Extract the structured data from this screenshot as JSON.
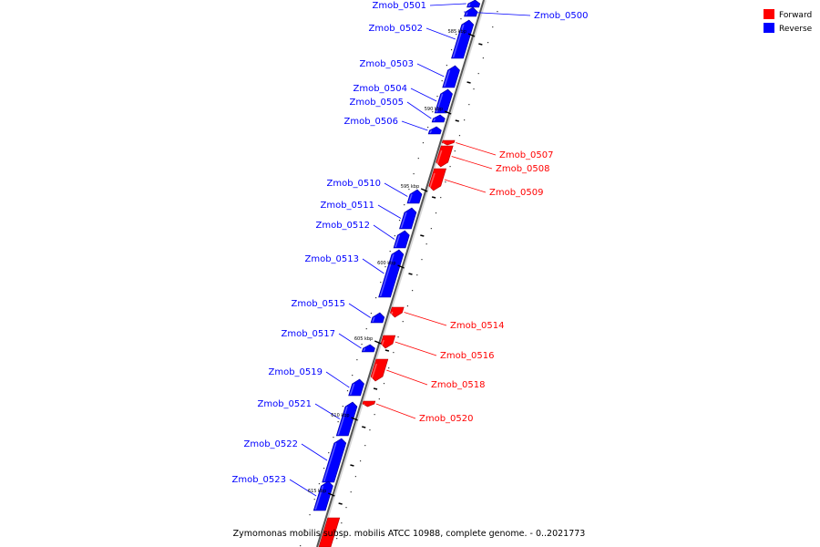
{
  "caption": "Zymomonas mobilis subsp. mobilis ATCC 10988, complete genome. - 0..2021773",
  "legend": [
    {
      "label": "Forward",
      "color": "#ff0000"
    },
    {
      "label": "Reverse",
      "color": "#0000ff"
    }
  ],
  "scale_labels": [
    "585 kbp",
    "590 kbp",
    "595 kbp",
    "600 kbp",
    "605 kbp",
    "610 kbp",
    "615 kbp"
  ],
  "genes": [
    {
      "name": "Zmob_0500",
      "strand": "reverse"
    },
    {
      "name": "Zmob_0501",
      "strand": "reverse"
    },
    {
      "name": "Zmob_0502",
      "strand": "reverse"
    },
    {
      "name": "Zmob_0503",
      "strand": "reverse"
    },
    {
      "name": "Zmob_0504",
      "strand": "reverse"
    },
    {
      "name": "Zmob_0505",
      "strand": "reverse"
    },
    {
      "name": "Zmob_0506",
      "strand": "reverse"
    },
    {
      "name": "Zmob_0507",
      "strand": "forward"
    },
    {
      "name": "Zmob_0508",
      "strand": "forward"
    },
    {
      "name": "Zmob_0509",
      "strand": "forward"
    },
    {
      "name": "Zmob_0510",
      "strand": "reverse"
    },
    {
      "name": "Zmob_0511",
      "strand": "reverse"
    },
    {
      "name": "Zmob_0512",
      "strand": "reverse"
    },
    {
      "name": "Zmob_0513",
      "strand": "reverse"
    },
    {
      "name": "Zmob_0514",
      "strand": "forward"
    },
    {
      "name": "Zmob_0515",
      "strand": "reverse"
    },
    {
      "name": "Zmob_0516",
      "strand": "forward"
    },
    {
      "name": "Zmob_0517",
      "strand": "reverse"
    },
    {
      "name": "Zmob_0518",
      "strand": "forward"
    },
    {
      "name": "Zmob_0519",
      "strand": "reverse"
    },
    {
      "name": "Zmob_0520",
      "strand": "forward"
    },
    {
      "name": "Zmob_0521",
      "strand": "reverse"
    },
    {
      "name": "Zmob_0522",
      "strand": "reverse"
    },
    {
      "name": "Zmob_0523",
      "strand": "reverse"
    }
  ]
}
